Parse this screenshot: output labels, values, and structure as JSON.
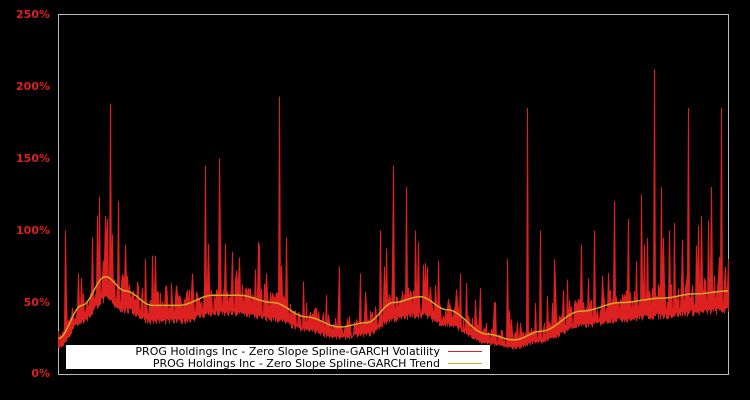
{
  "chart_data": {
    "type": "line",
    "title": "",
    "xlabel": "",
    "ylabel": "",
    "ylim": [
      0,
      250
    ],
    "yticks": [
      "0%",
      "50%",
      "100%",
      "150%",
      "200%",
      "250%"
    ],
    "grid": false,
    "legend_position": "lower-left",
    "series": [
      {
        "name": "PROG Holdings Inc - Zero Slope Spline-GARCH Volatility",
        "color": "#dd2020",
        "x_frac": [
          0.0,
          0.01,
          0.03,
          0.05,
          0.07,
          0.078,
          0.09,
          0.1,
          0.13,
          0.16,
          0.2,
          0.22,
          0.24,
          0.26,
          0.28,
          0.31,
          0.33,
          0.34,
          0.37,
          0.4,
          0.42,
          0.45,
          0.48,
          0.5,
          0.52,
          0.53,
          0.55,
          0.57,
          0.6,
          0.63,
          0.65,
          0.67,
          0.7,
          0.72,
          0.74,
          0.76,
          0.78,
          0.8,
          0.83,
          0.85,
          0.87,
          0.89,
          0.9,
          0.92,
          0.94,
          0.96,
          0.975,
          0.99,
          1.0
        ],
        "values": [
          30,
          100,
          70,
          95,
          110,
          188,
          120,
          90,
          80,
          60,
          70,
          145,
          150,
          85,
          60,
          70,
          193,
          95,
          50,
          55,
          75,
          70,
          100,
          145,
          130,
          55,
          65,
          40,
          70,
          60,
          50,
          80,
          185,
          100,
          80,
          65,
          90,
          100,
          120,
          108,
          125,
          212,
          130,
          105,
          185,
          110,
          130,
          185,
          80
        ]
      },
      {
        "name": "PROG Holdings Inc - Zero Slope Spline-GARCH Trend",
        "color": "#d4a82a",
        "x_frac": [
          0.0,
          0.035,
          0.07,
          0.1,
          0.14,
          0.18,
          0.23,
          0.27,
          0.32,
          0.37,
          0.42,
          0.46,
          0.5,
          0.54,
          0.58,
          0.64,
          0.68,
          0.72,
          0.78,
          0.84,
          0.9,
          0.95,
          1.0
        ],
        "values": [
          25,
          48,
          68,
          58,
          48,
          48,
          55,
          55,
          50,
          40,
          33,
          36,
          50,
          54,
          45,
          28,
          24,
          30,
          44,
          50,
          53,
          56,
          58
        ]
      }
    ]
  },
  "legend": {
    "items": [
      {
        "label": "PROG Holdings Inc - Zero Slope Spline-GARCH Volatility",
        "color": "#dd2020"
      },
      {
        "label": "PROG Holdings Inc - Zero Slope Spline-GARCH Trend",
        "color": "#d4a82a"
      }
    ]
  },
  "axis": {
    "ticks": [
      "0%",
      "50%",
      "100%",
      "150%",
      "200%",
      "250%"
    ]
  }
}
